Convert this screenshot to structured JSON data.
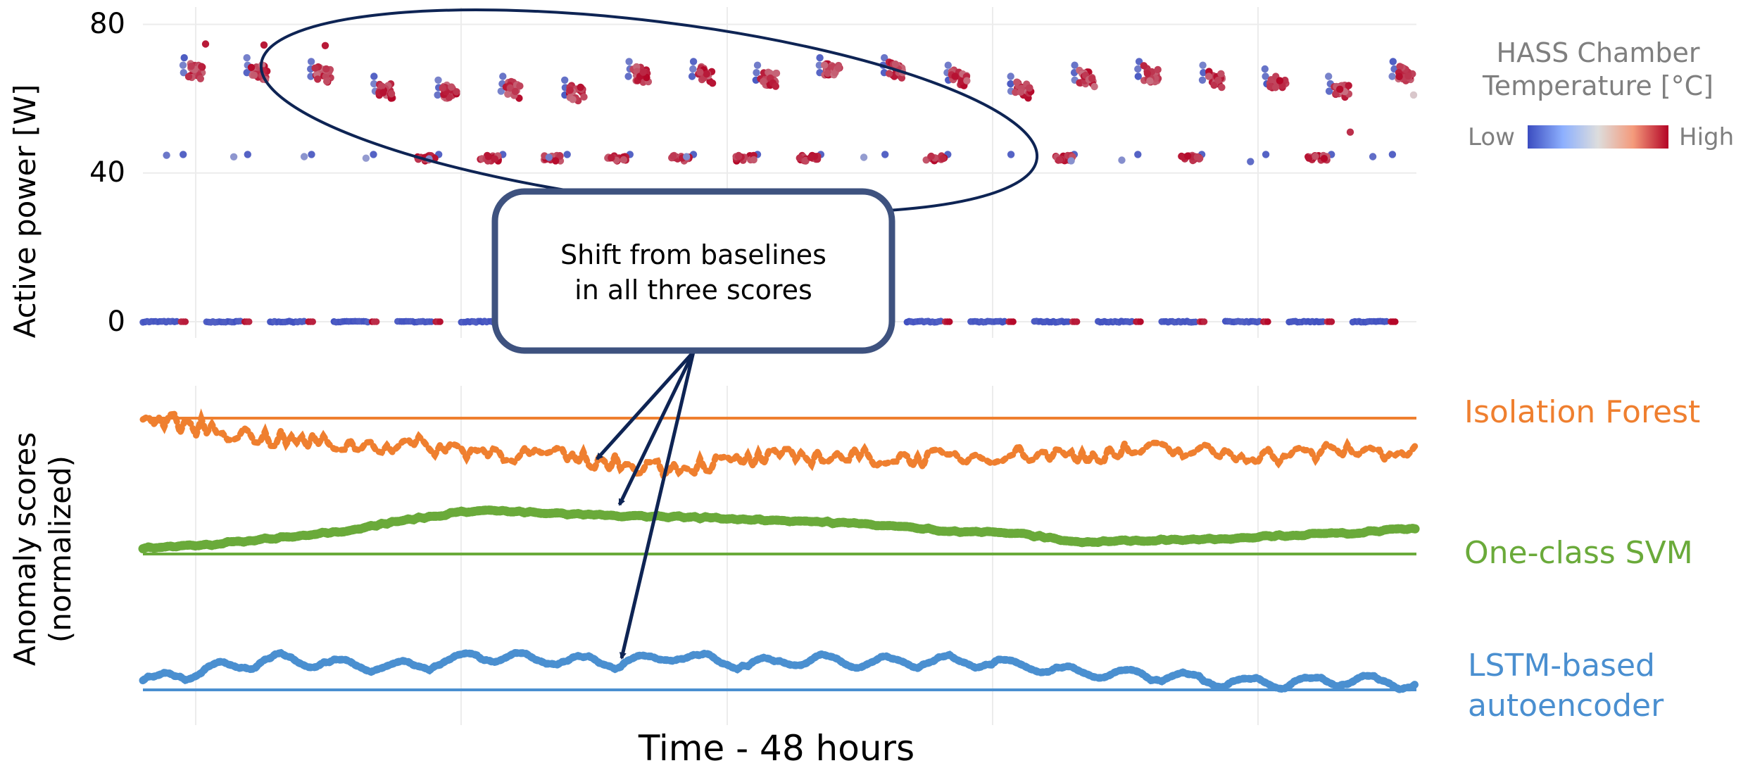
{
  "chart_data": [
    {
      "type": "scatter",
      "ylabel": "Active power [W]",
      "ylim": [
        -5,
        85
      ],
      "yticks": [
        "80",
        "40",
        "0"
      ],
      "grid": true,
      "colorbar": {
        "title_line1": "HASS Chamber",
        "title_line2": "Temperature [°C]",
        "low_label": "Low",
        "high_label": "High",
        "colors": [
          "#3b4cc0",
          "#dddddd",
          "#b40426"
        ],
        "placement": "right"
      },
      "levels": {
        "off": 0,
        "mid": 44,
        "high_range": [
          60,
          75
        ],
        "high_by_cycle": [
          68,
          68,
          67,
          63,
          62,
          63,
          62,
          67,
          67,
          66,
          68,
          68,
          66,
          63,
          66,
          67,
          66,
          65,
          63,
          67
        ],
        "mid_spikes": [
          75,
          75,
          75
        ]
      },
      "points_note": "Periodic cycling between 0 W idle, ~44 W and 60-75 W load states; color encodes chamber temperature"
    },
    {
      "type": "line",
      "xlabel": "Time - 48 hours",
      "ylabel_line1": "Anomaly scores",
      "ylabel_line2": "(normalized)",
      "grid": true,
      "series": [
        {
          "name": "Isolation Forest",
          "color": "#ef7f2f",
          "baseline": 1.0,
          "values": [
            1.0,
            0.96,
            0.92,
            0.9,
            0.9,
            0.88,
            0.86,
            0.83,
            0.82,
            0.84,
            0.86,
            0.85,
            0.85,
            0.87,
            0.86,
            0.88,
            0.87,
            0.86,
            0.88,
            0.87
          ]
        },
        {
          "name": "One-class SVM",
          "color": "#6aaa3a",
          "baseline": 0.0,
          "values": [
            0.05,
            0.08,
            0.14,
            0.2,
            0.3,
            0.38,
            0.35,
            0.33,
            0.32,
            0.3,
            0.28,
            0.25,
            0.2,
            0.18,
            0.1,
            0.12,
            0.13,
            0.16,
            0.18,
            0.22
          ]
        },
        {
          "name_line1": "LSTM-based",
          "name_line2": "autoencoder",
          "color": "#4a8fd0",
          "baseline": 0.0,
          "values": [
            0.05,
            0.12,
            0.18,
            0.15,
            0.14,
            0.2,
            0.18,
            0.16,
            0.2,
            0.15,
            0.18,
            0.16,
            0.17,
            0.15,
            0.1,
            0.09,
            0.05,
            0.04,
            0.06,
            0.03
          ]
        }
      ]
    }
  ],
  "callout": {
    "line1": "Shift from baselines",
    "line2": "in all three scores",
    "border_color": "#3e527f",
    "arrow_color": "#0e2454"
  }
}
